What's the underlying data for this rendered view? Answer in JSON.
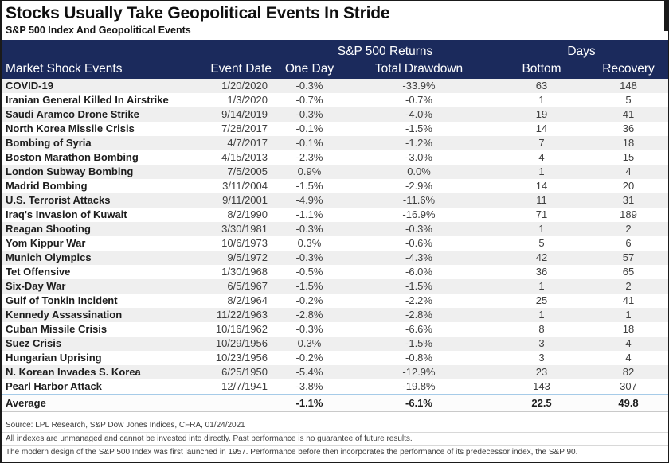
{
  "header": {
    "title": "Stocks Usually Take Geopolitical Events In Stride",
    "subtitle": "S&P 500 Index And Geopolitical Events"
  },
  "chart_data": {
    "type": "table",
    "title": "Stocks Usually Take Geopolitical Events In Stride",
    "subtitle": "S&P 500 Index And Geopolitical Events",
    "group_headers": [
      {
        "label": "S&P 500 Returns",
        "spans": [
          "One Day",
          "Total Drawdown"
        ]
      },
      {
        "label": "Days",
        "spans": [
          "Bottom",
          "Recovery"
        ]
      }
    ],
    "columns": [
      "Market Shock Events",
      "Event Date",
      "One Day",
      "Total Drawdown",
      "Bottom",
      "Recovery"
    ],
    "rows": [
      [
        "COVID-19",
        "1/20/2020",
        "-0.3%",
        "-33.9%",
        "63",
        "148"
      ],
      [
        "Iranian General Killed In Airstrike",
        "1/3/2020",
        "-0.7%",
        "-0.7%",
        "1",
        "5"
      ],
      [
        "Saudi Aramco Drone Strike",
        "9/14/2019",
        "-0.3%",
        "-4.0%",
        "19",
        "41"
      ],
      [
        "North Korea Missile Crisis",
        "7/28/2017",
        "-0.1%",
        "-1.5%",
        "14",
        "36"
      ],
      [
        "Bombing of Syria",
        "4/7/2017",
        "-0.1%",
        "-1.2%",
        "7",
        "18"
      ],
      [
        "Boston Marathon Bombing",
        "4/15/2013",
        "-2.3%",
        "-3.0%",
        "4",
        "15"
      ],
      [
        "London Subway Bombing",
        "7/5/2005",
        "0.9%",
        "0.0%",
        "1",
        "4"
      ],
      [
        "Madrid Bombing",
        "3/11/2004",
        "-1.5%",
        "-2.9%",
        "14",
        "20"
      ],
      [
        "U.S. Terrorist Attacks",
        "9/11/2001",
        "-4.9%",
        "-11.6%",
        "11",
        "31"
      ],
      [
        "Iraq's Invasion of Kuwait",
        "8/2/1990",
        "-1.1%",
        "-16.9%",
        "71",
        "189"
      ],
      [
        "Reagan Shooting",
        "3/30/1981",
        "-0.3%",
        "-0.3%",
        "1",
        "2"
      ],
      [
        "Yom Kippur War",
        "10/6/1973",
        "0.3%",
        "-0.6%",
        "5",
        "6"
      ],
      [
        "Munich Olympics",
        "9/5/1972",
        "-0.3%",
        "-4.3%",
        "42",
        "57"
      ],
      [
        "Tet Offensive",
        "1/30/1968",
        "-0.5%",
        "-6.0%",
        "36",
        "65"
      ],
      [
        "Six-Day War",
        "6/5/1967",
        "-1.5%",
        "-1.5%",
        "1",
        "2"
      ],
      [
        "Gulf of Tonkin Incident",
        "8/2/1964",
        "-0.2%",
        "-2.2%",
        "25",
        "41"
      ],
      [
        "Kennedy Assassination",
        "11/22/1963",
        "-2.8%",
        "-2.8%",
        "1",
        "1"
      ],
      [
        "Cuban Missile Crisis",
        "10/16/1962",
        "-0.3%",
        "-6.6%",
        "8",
        "18"
      ],
      [
        "Suez Crisis",
        "10/29/1956",
        "0.3%",
        "-1.5%",
        "3",
        "4"
      ],
      [
        "Hungarian Uprising",
        "10/23/1956",
        "-0.2%",
        "-0.8%",
        "3",
        "4"
      ],
      [
        "N. Korean Invades S. Korea",
        "6/25/1950",
        "-5.4%",
        "-12.9%",
        "23",
        "82"
      ],
      [
        "Pearl Harbor Attack",
        "12/7/1941",
        "-3.8%",
        "-19.8%",
        "143",
        "307"
      ]
    ],
    "average_row": [
      "Average",
      "",
      "-1.1%",
      "-6.1%",
      "22.5",
      "49.8"
    ]
  },
  "footer": {
    "source_line": "Source: LPL Research, S&P Dow Jones Indices, CFRA, 01/24/2021",
    "disclaimer_line1": "All indexes are unmanaged and cannot be invested into directly.  Past performance is no guarantee of future results.",
    "disclaimer_line2": "The modern design of the S&P 500 Index was first launched in 1957. Performance before then incorporates the performance of its predecessor index, the S&P 90."
  },
  "colors": {
    "header_band": "#1b2a5c",
    "row_stripe": "#efefef",
    "average_divider": "#a6cbe8",
    "footer_text": "#3c3c3c"
  }
}
